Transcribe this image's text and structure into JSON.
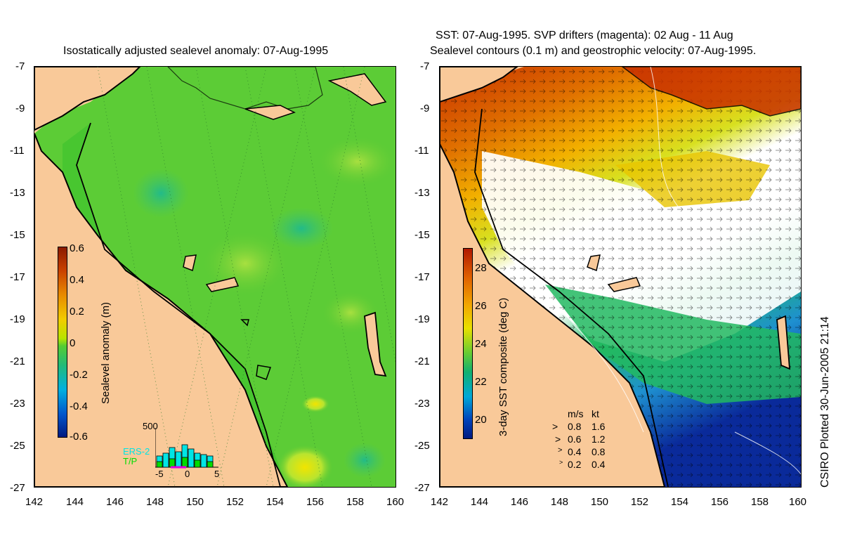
{
  "left_panel": {
    "title": "Isostatically adjusted sealevel anomaly: 07-Aug-1995",
    "colorbar": {
      "label": "Sealevel anomaly (m)",
      "ticks": [
        "0.6",
        "0.4",
        "0.2",
        "0",
        "-0.2",
        "-0.4",
        "-0.6"
      ],
      "range": [
        -0.6,
        0.6
      ]
    },
    "inset": {
      "ymax_label": "500",
      "x_ticks": [
        "-5",
        "0",
        "5"
      ],
      "series": [
        "ERS-2",
        "T/P"
      ],
      "series_colors": [
        "#00e5e5",
        "#00dd00"
      ]
    }
  },
  "right_panel": {
    "title_line1": "SST: 07-Aug-1995. SVP drifters (magenta): 02 Aug - 11 Aug",
    "title_line2": "Sealevel contours (0.1 m) and geostrophic velocity: 07-Aug-1995.",
    "colorbar": {
      "label": "3-day SST composite (deg C)",
      "ticks": [
        "28",
        "26",
        "24",
        "22",
        "20"
      ],
      "range": [
        19,
        29
      ]
    },
    "velocity_legend": {
      "headers": [
        "m/s",
        "kt"
      ],
      "rows": [
        {
          "ms": "0.8",
          "kt": "1.6"
        },
        {
          "ms": "0.6",
          "kt": "1.2"
        },
        {
          "ms": "0.4",
          "kt": "0.8"
        },
        {
          "ms": "0.2",
          "kt": "0.4"
        }
      ]
    }
  },
  "axes": {
    "lat_ticks": [
      "-7",
      "-9",
      "-11",
      "-13",
      "-15",
      "-17",
      "-19",
      "-21",
      "-23",
      "-25",
      "-27"
    ],
    "lon_ticks": [
      "142",
      "144",
      "146",
      "148",
      "150",
      "152",
      "154",
      "156",
      "158",
      "160"
    ]
  },
  "credit": "CSIRO Plotted 30-Jun-2005 21:14",
  "colors": {
    "land": "#f9c999",
    "ocean_sla": "#55cc33",
    "coast": "#000000"
  }
}
